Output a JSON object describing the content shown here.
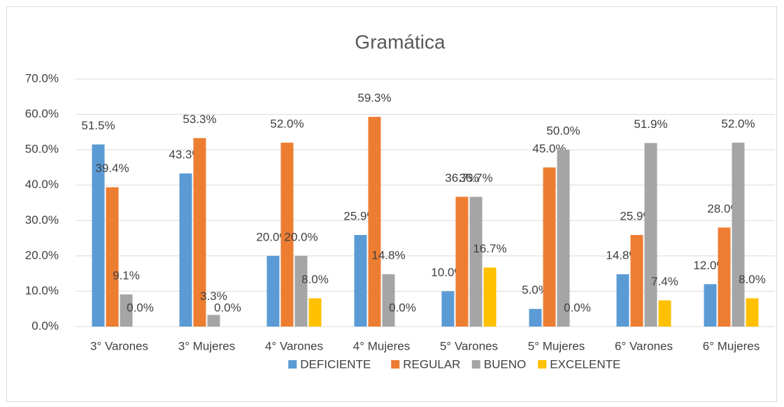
{
  "chart_data": {
    "type": "bar",
    "title": "Gramática",
    "categories": [
      "3° Varones",
      "3° Mujeres",
      "4° Varones",
      "4° Mujeres",
      "5° Varones",
      "5° Mujeres",
      "6° Varones",
      "6° Mujeres"
    ],
    "series": [
      {
        "name": "DEFICIENTE",
        "color": "#5b9bd5",
        "values": [
          51.5,
          43.3,
          20.0,
          25.9,
          10.0,
          5.0,
          14.8,
          12.0
        ],
        "value_labels": [
          "51.5%",
          "43.3%",
          "20.0%",
          "25.9%",
          "10.0%",
          "5.0%",
          "14.8%",
          "12.0%"
        ]
      },
      {
        "name": "REGULAR",
        "color": "#ed7d31",
        "values": [
          39.4,
          53.3,
          52.0,
          59.3,
          36.7,
          45.0,
          25.9,
          28.0
        ],
        "value_labels": [
          "39.4%",
          "53.3%",
          "52.0%",
          "59.3%",
          "36.7%",
          "45.0%",
          "25.9%",
          "28.0%"
        ]
      },
      {
        "name": "BUENO",
        "color": "#a5a5a5",
        "values": [
          9.1,
          3.3,
          20.0,
          14.8,
          36.7,
          50.0,
          51.9,
          52.0
        ],
        "value_labels": [
          "9.1%",
          "3.3%",
          "20.0%",
          "14.8%",
          "36.7%",
          "50.0%",
          "51.9%",
          "52.0%"
        ]
      },
      {
        "name": "EXCELENTE",
        "color": "#ffc000",
        "values": [
          0.0,
          0.0,
          8.0,
          0.0,
          16.7,
          0.0,
          7.4,
          8.0
        ],
        "value_labels": [
          "0.0%",
          "0.0%",
          "8.0%",
          "0.0%",
          "16.7%",
          "0.0%",
          "7.4%",
          "8.0%"
        ]
      }
    ],
    "ylim": [
      0,
      70
    ],
    "yticks": [
      {
        "value": 0,
        "label": "0.0%"
      },
      {
        "value": 10,
        "label": "10.0%"
      },
      {
        "value": 20,
        "label": "20.0%"
      },
      {
        "value": 30,
        "label": "30.0%"
      },
      {
        "value": 40,
        "label": "40.0%"
      },
      {
        "value": 50,
        "label": "50.0%"
      },
      {
        "value": 60,
        "label": "60.0%"
      },
      {
        "value": 70,
        "label": "70.0%"
      }
    ],
    "grid": true,
    "legend": "bottom"
  }
}
